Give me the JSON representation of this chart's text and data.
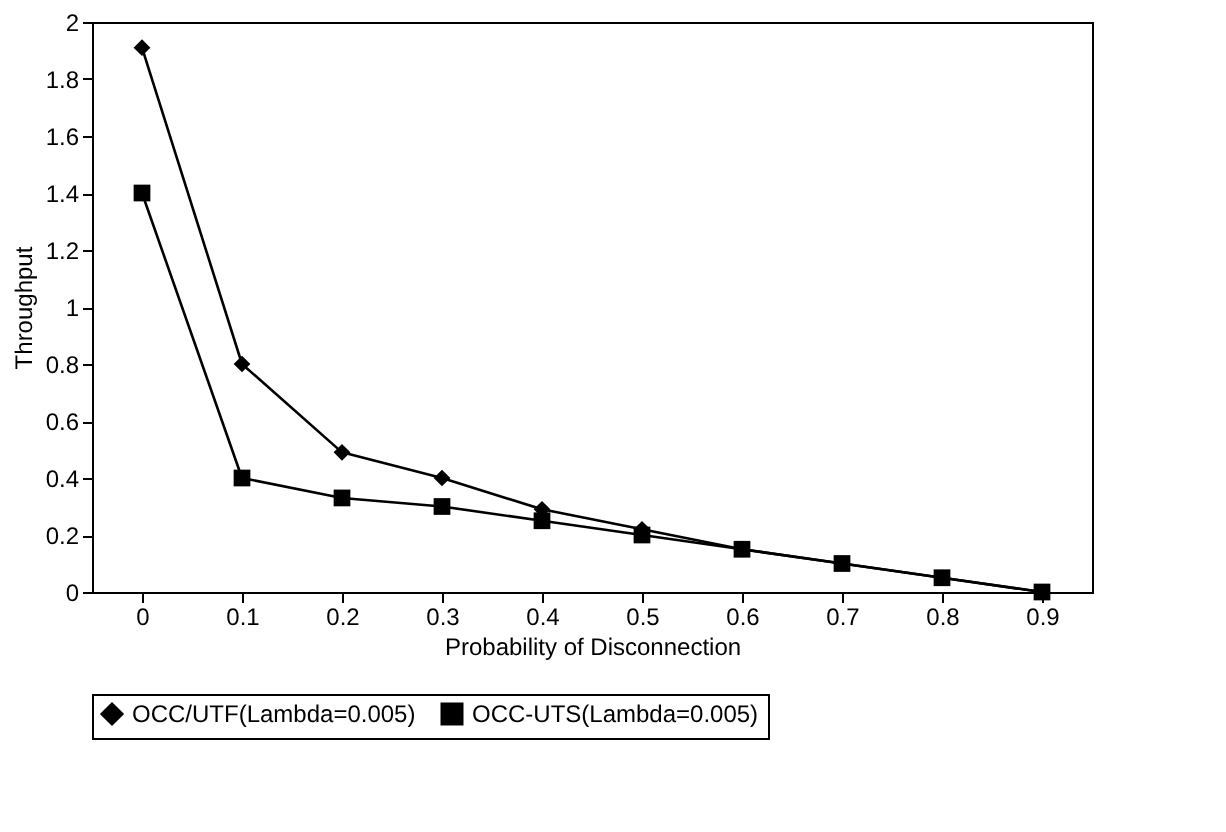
{
  "chart_data": {
    "type": "line",
    "xlabel": "Probability of Disconnection",
    "ylabel": "Throughput",
    "categories": [
      "0",
      "0.1",
      "0.2",
      "0.3",
      "0.4",
      "0.5",
      "0.6",
      "0.7",
      "0.8",
      "0.9"
    ],
    "series": [
      {
        "name": "OCC/UTF(Lambda=0.005)",
        "color": "#000000",
        "marker": "diamond",
        "values": [
          1.91,
          0.8,
          0.49,
          0.4,
          0.29,
          0.22,
          0.15,
          0.1,
          0.05,
          0
        ]
      },
      {
        "name": "OCC-UTS(Lambda=0.005)",
        "color": "#000000",
        "marker": "square",
        "values": [
          1.4,
          0.4,
          0.33,
          0.3,
          0.25,
          0.2,
          0.15,
          0.1,
          0.05,
          0
        ]
      }
    ],
    "ylim": [
      0,
      2
    ],
    "yticks": [
      0,
      0.2,
      0.4,
      0.6,
      0.8,
      1,
      1.2,
      1.4,
      1.6,
      1.8,
      2
    ],
    "grid": false,
    "legend": "bottom",
    "line_style": "solid"
  }
}
